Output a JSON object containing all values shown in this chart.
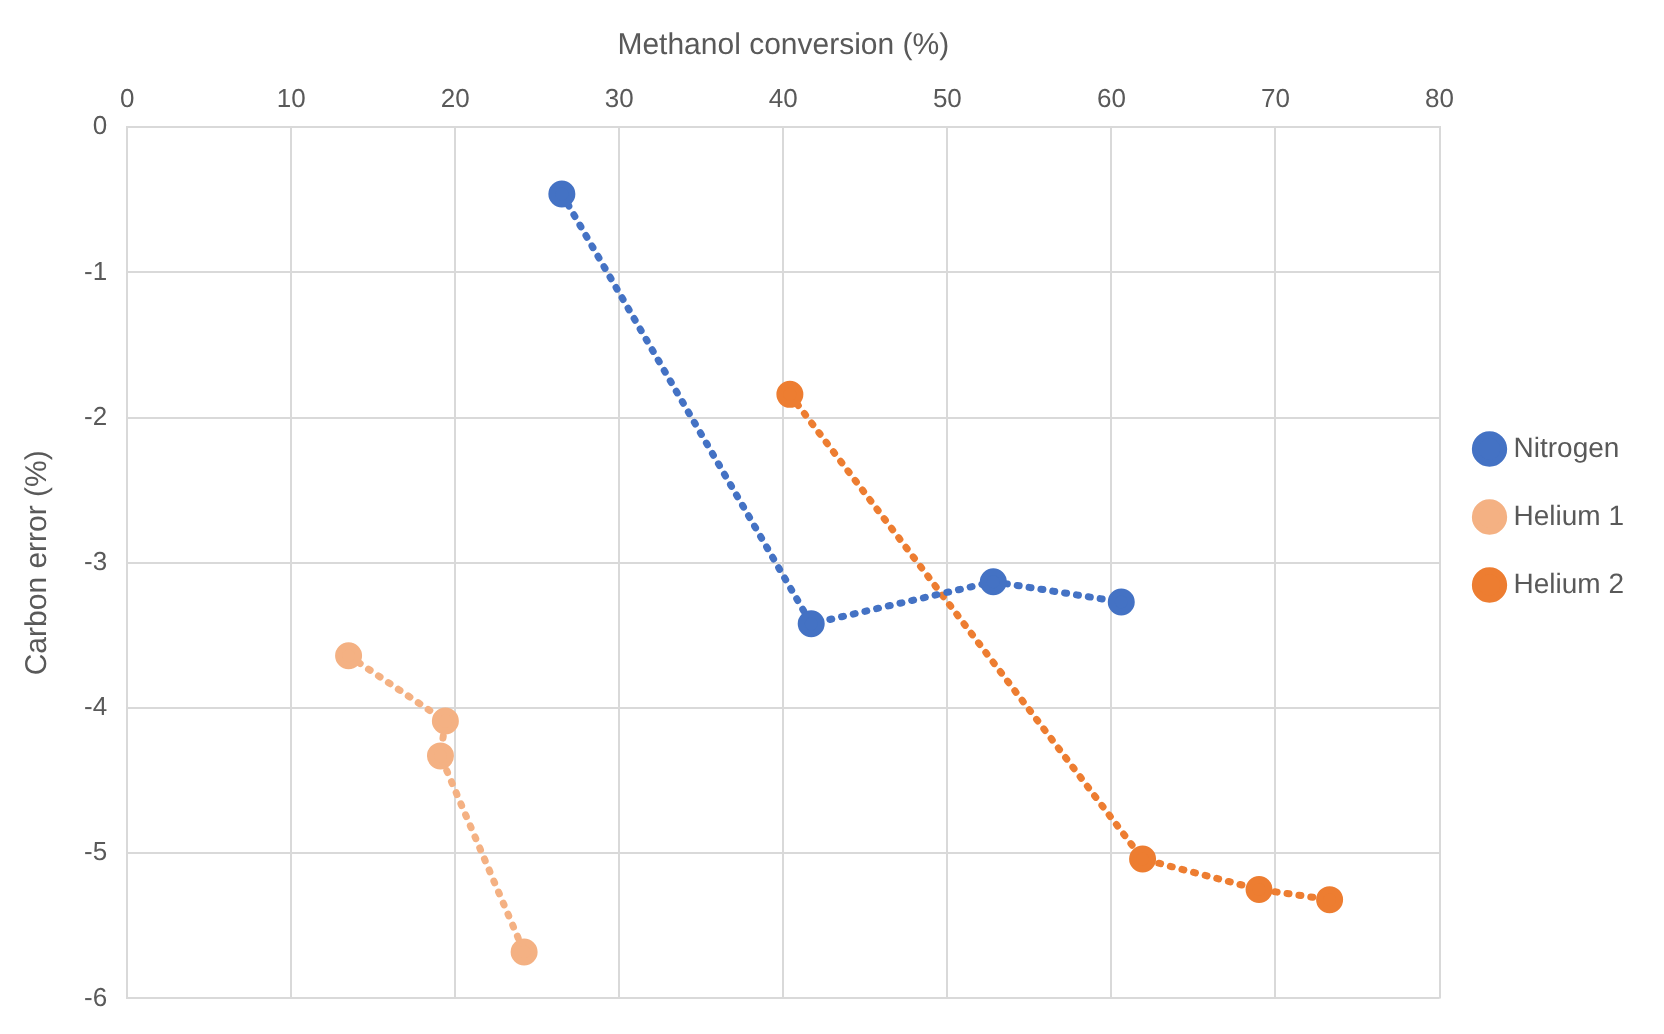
{
  "chart_data": {
    "type": "line",
    "xlabel": "Methanol conversion (%)",
    "ylabel": "Carbon error (%)",
    "xlim": [
      0,
      80
    ],
    "xticks": [
      0,
      10,
      20,
      30,
      40,
      50,
      60,
      70,
      80
    ],
    "ylim": [
      -6,
      0
    ],
    "yticks": [
      -6,
      -5,
      -4,
      -3,
      -2,
      -1,
      0
    ],
    "grid": true,
    "legend": "right",
    "marker": "circle",
    "line_style": "dotted",
    "series": [
      {
        "name": "Nitrogen",
        "color": "#4472c4",
        "x": [
          26.5,
          41.7,
          52.8,
          60.6
        ],
        "values": [
          -0.46,
          -3.42,
          -3.13,
          -3.27
        ]
      },
      {
        "name": "Helium 1",
        "color": "#f4b183",
        "x": [
          13.5,
          19.4,
          19.1,
          24.2
        ],
        "values": [
          -3.64,
          -4.09,
          -4.33,
          -5.68
        ]
      },
      {
        "name": "Helium 2",
        "color": "#ed7d31",
        "x": [
          40.4,
          61.9,
          69.0,
          73.3
        ],
        "values": [
          -1.84,
          -5.04,
          -5.25,
          -5.32
        ]
      }
    ]
  }
}
